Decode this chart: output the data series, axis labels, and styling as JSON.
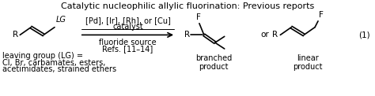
{
  "title": "Catalytic nucleophilic allylic fluorination: Previous reports",
  "title_fontsize": 8.0,
  "body_fontsize": 7.5,
  "small_fontsize": 7.0,
  "bg_color": "#ffffff",
  "text_color": "#000000",
  "line_color": "#000000",
  "figsize": [
    4.74,
    1.22
  ],
  "dpi": 100,
  "catalyst_line1": "[Pd], [Ir], [Rh], or [Cu]",
  "catalyst_line2": "catalyst",
  "below_arrow_line1": "fluoride source",
  "below_arrow_line2": "Refs. [11–14]",
  "lg_line1": "leaving group (LG) =",
  "lg_line2": "Cl, Br, carbamates, esters,",
  "lg_line3": "acetimidates, strained ethers",
  "branched_label": "branched\nproduct",
  "linear_label": "linear\nproduct",
  "eq_number": "(1)"
}
